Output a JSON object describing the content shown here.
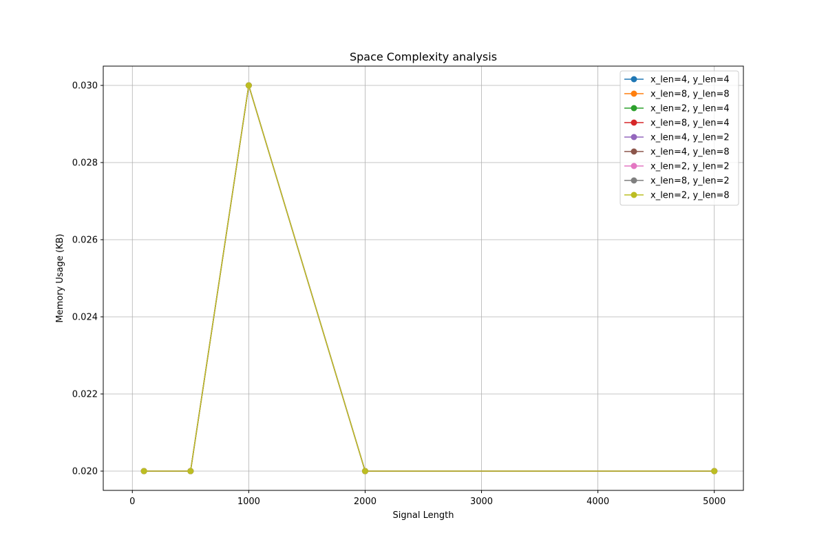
{
  "chart_data": {
    "type": "line",
    "title": "Space Complexity analysis",
    "xlabel": "Signal Length",
    "ylabel": "Memory Usage (KB)",
    "xlim": [
      -250,
      5250
    ],
    "ylim": [
      0.0195,
      0.0305
    ],
    "xticks": [
      0,
      1000,
      2000,
      3000,
      4000,
      5000
    ],
    "xtick_labels": [
      "0",
      "1000",
      "2000",
      "3000",
      "4000",
      "5000"
    ],
    "yticks": [
      0.02,
      0.022,
      0.024,
      0.026,
      0.028,
      0.03
    ],
    "ytick_labels": [
      "0.020",
      "0.022",
      "0.024",
      "0.026",
      "0.028",
      "0.030"
    ],
    "grid": true,
    "legend_position": "top-right",
    "x": [
      100,
      500,
      1000,
      2000,
      5000
    ],
    "series": [
      {
        "name": "x_len=4, y_len=4",
        "color": "#1f77b4",
        "values": [
          0.02,
          0.02,
          0.03,
          0.02,
          0.02
        ]
      },
      {
        "name": "x_len=8, y_len=8",
        "color": "#ff7f0e",
        "values": [
          0.02,
          0.02,
          0.03,
          0.02,
          0.02
        ]
      },
      {
        "name": "x_len=2, y_len=4",
        "color": "#2ca02c",
        "values": [
          0.02,
          0.02,
          0.03,
          0.02,
          0.02
        ]
      },
      {
        "name": "x_len=8, y_len=4",
        "color": "#d62728",
        "values": [
          0.02,
          0.02,
          0.03,
          0.02,
          0.02
        ]
      },
      {
        "name": "x_len=4, y_len=2",
        "color": "#9467bd",
        "values": [
          0.02,
          0.02,
          0.03,
          0.02,
          0.02
        ]
      },
      {
        "name": "x_len=4, y_len=8",
        "color": "#8c564b",
        "values": [
          0.02,
          0.02,
          0.03,
          0.02,
          0.02
        ]
      },
      {
        "name": "x_len=2, y_len=2",
        "color": "#e377c2",
        "values": [
          0.02,
          0.02,
          0.03,
          0.02,
          0.02
        ]
      },
      {
        "name": "x_len=8, y_len=2",
        "color": "#7f7f7f",
        "values": [
          0.02,
          0.02,
          0.03,
          0.02,
          0.02
        ]
      },
      {
        "name": "x_len=2, y_len=8",
        "color": "#bcbd22",
        "values": [
          0.02,
          0.02,
          0.03,
          0.02,
          0.02
        ]
      }
    ]
  }
}
